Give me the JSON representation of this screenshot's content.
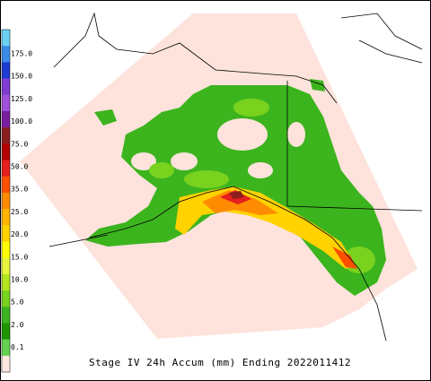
{
  "legend": {
    "labels": [
      "175.0",
      "150.0",
      "125.0",
      "100.0",
      "75.0",
      "50.0",
      "35.0",
      "25.0",
      "20.0",
      "15.0",
      "10.0",
      "5.0",
      "2.0",
      "0.1"
    ],
    "colors": [
      "#6ad2f5",
      "#3a8ce6",
      "#1e3cd2",
      "#7f3cd2",
      "#a050dc",
      "#7a1ea0",
      "#8c1e1e",
      "#b40000",
      "#e61e1e",
      "#ff5000",
      "#ff8c00",
      "#ffb400",
      "#ffd200",
      "#ffff00",
      "#e6f53c",
      "#b4e61e",
      "#78d21e",
      "#3cb41e",
      "#1e9600",
      "#64d250",
      "#fde8e0"
    ]
  },
  "caption": "Stage IV 24h Accum (mm) Ending 2022011412"
}
